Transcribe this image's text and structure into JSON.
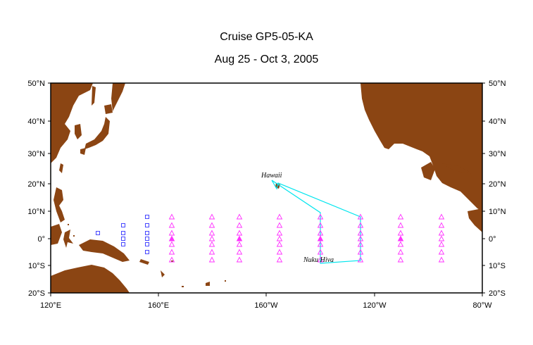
{
  "map": {
    "title": "Cruise GP5-05-KA",
    "subtitle": "Aug 25 - Oct 3, 2005",
    "lon_labels": [
      "120°E",
      "160°E",
      "160°W",
      "120°W",
      "80°W"
    ],
    "lat_labels": [
      "50°N",
      "40°N",
      "30°N",
      "20°N",
      "10°N",
      "0°",
      "10°S",
      "20°S"
    ],
    "places": {
      "hawaii": "Hawaii",
      "nuku_hiva": "Nuku Hiva"
    },
    "colors": {
      "land": "#8b4513",
      "ocean": "#ffffff",
      "cruise_track": "#00e5ee",
      "triangle_buoy": "#ff33ff",
      "square_buoy": "#3333ff"
    },
    "extent": {
      "lon_min": 120,
      "lon_max": 280,
      "lat_min": -20,
      "lat_max": 50
    }
  }
}
